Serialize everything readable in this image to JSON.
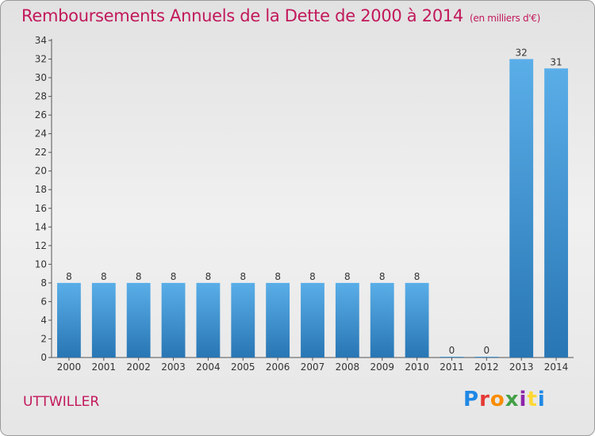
{
  "title": "Remboursements Annuels de la Dette de 2000 à 2014",
  "subtitle": "(en milliers d'€)",
  "commune": "UTTWILLER",
  "logo": "Proxiti",
  "colors": {
    "title": "#c2185b",
    "bar_top": "#5aaee8",
    "bar_bottom": "#2876b4"
  },
  "chart_data": {
    "type": "bar",
    "title": "Remboursements Annuels de la Dette de 2000 à 2014",
    "subtitle": "(en milliers d'€)",
    "xlabel": "",
    "ylabel": "",
    "categories": [
      "2000",
      "2001",
      "2002",
      "2003",
      "2004",
      "2005",
      "2006",
      "2007",
      "2008",
      "2009",
      "2010",
      "2011",
      "2012",
      "2013",
      "2014"
    ],
    "values": [
      8,
      8,
      8,
      8,
      8,
      8,
      8,
      8,
      8,
      8,
      8,
      0,
      0,
      32,
      31
    ],
    "data_labels": [
      "8",
      "8",
      "8",
      "8",
      "8",
      "8",
      "8",
      "8",
      "8",
      "8",
      "8",
      "0",
      "0",
      "32",
      "31"
    ],
    "yticks": [
      0,
      2,
      4,
      6,
      8,
      10,
      12,
      14,
      16,
      18,
      20,
      22,
      24,
      26,
      28,
      30,
      32,
      34
    ],
    "ylim": [
      0,
      34
    ],
    "grid": false,
    "legend": "none"
  }
}
